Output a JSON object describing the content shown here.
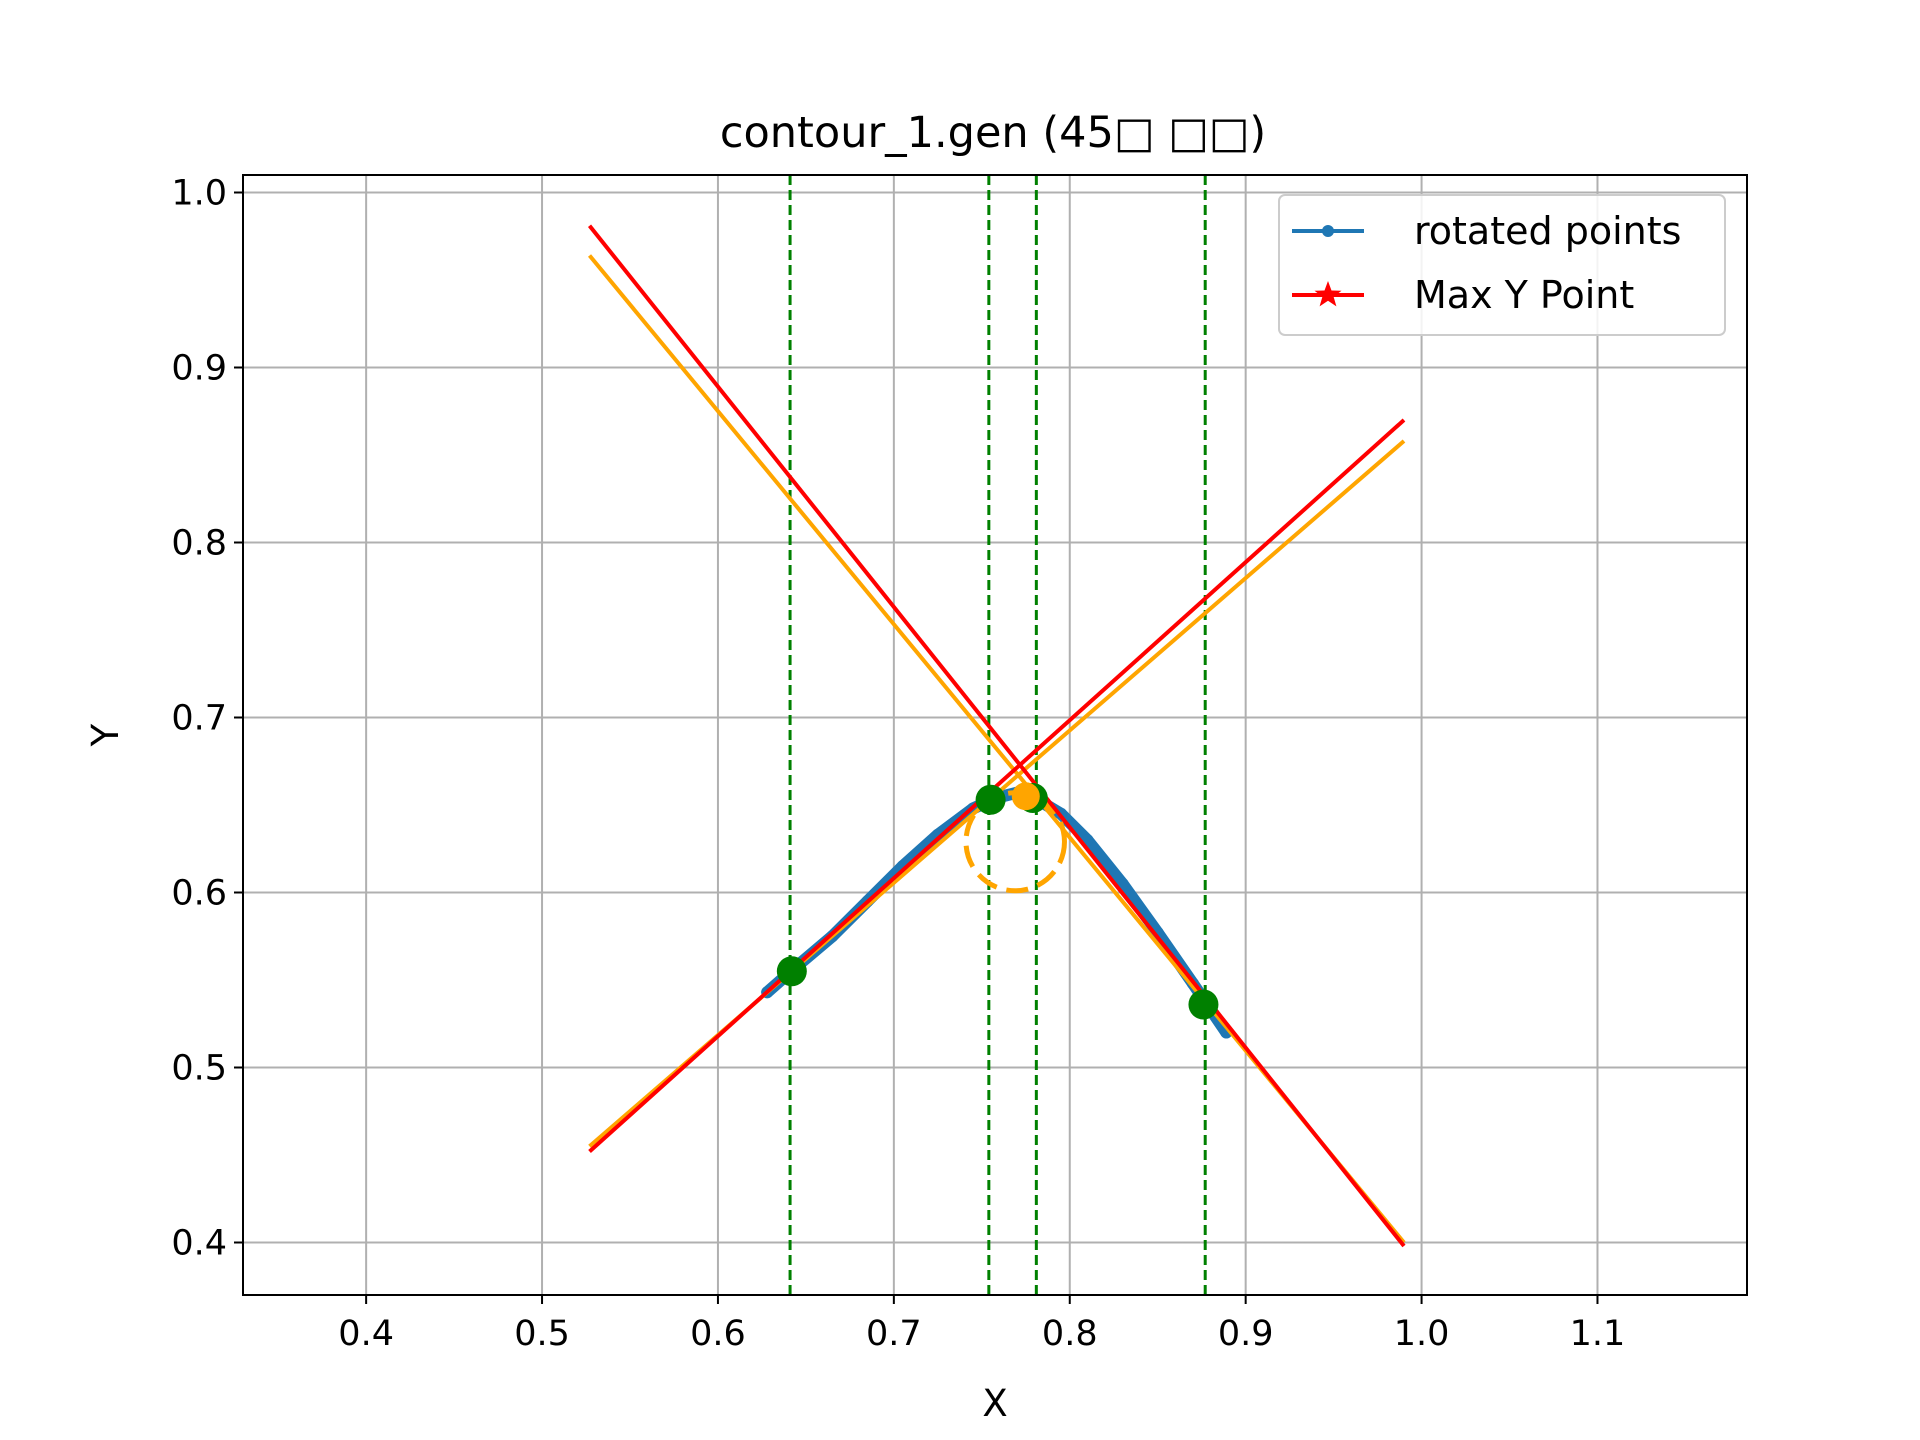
{
  "chart_data": {
    "type": "line",
    "title": "contour_1.gen (45□ □□)",
    "xlabel": "X",
    "ylabel": "Y",
    "xlim": [
      0.33,
      1.185
    ],
    "ylim": [
      0.37,
      1.01
    ],
    "xticks": [
      0.4,
      0.5,
      0.6,
      0.7,
      0.8,
      0.9,
      1.0,
      1.1
    ],
    "yticks": [
      0.4,
      0.5,
      0.6,
      0.7,
      0.8,
      0.9,
      1.0
    ],
    "xtick_labels": [
      "0.4",
      "0.5",
      "0.6",
      "0.7",
      "0.8",
      "0.9",
      "1.0",
      "1.1"
    ],
    "ytick_labels": [
      "0.4",
      "0.5",
      "0.6",
      "0.7",
      "0.8",
      "0.9",
      "1.0"
    ],
    "grid": true,
    "legend_position": "top-right",
    "legend": [
      {
        "label": "rotated points",
        "color": "#1f77b4",
        "marker": "circle"
      },
      {
        "label": "Max Y Point",
        "color": "#ff0000",
        "marker": "star"
      }
    ],
    "rotated_points": {
      "color": "#1f77b4",
      "x": [
        0.628,
        0.645,
        0.665,
        0.685,
        0.705,
        0.725,
        0.745,
        0.758,
        0.77,
        0.78,
        0.795,
        0.81,
        0.83,
        0.85,
        0.87,
        0.889
      ],
      "y": [
        0.543,
        0.558,
        0.575,
        0.595,
        0.615,
        0.633,
        0.648,
        0.654,
        0.657,
        0.654,
        0.645,
        0.63,
        0.605,
        0.577,
        0.548,
        0.52
      ]
    },
    "vertical_lines": {
      "color": "#008000",
      "style": "dashed",
      "x": [
        0.641,
        0.754,
        0.781,
        0.877
      ]
    },
    "marked_points": {
      "color": "#008000",
      "x": [
        0.642,
        0.755,
        0.779,
        0.876
      ],
      "y": [
        0.555,
        0.653,
        0.654,
        0.536
      ]
    },
    "orange_point": {
      "color": "#ffa500",
      "x": 0.775,
      "y": 0.655
    },
    "dashed_circle": {
      "color": "#ffa500",
      "cx": 0.769,
      "cy": 0.629,
      "r": 0.028
    },
    "fit_lines": [
      {
        "color": "#ffa500",
        "x": [
          0.527,
          0.99
        ],
        "y": [
          0.964,
          0.4
        ]
      },
      {
        "color": "#ffa500",
        "x": [
          0.527,
          0.99
        ],
        "y": [
          0.455,
          0.858
        ]
      },
      {
        "color": "#ff0000",
        "x": [
          0.527,
          0.99
        ],
        "y": [
          0.981,
          0.398
        ]
      },
      {
        "color": "#ff0000",
        "x": [
          0.527,
          0.99
        ],
        "y": [
          0.452,
          0.87
        ]
      }
    ]
  }
}
